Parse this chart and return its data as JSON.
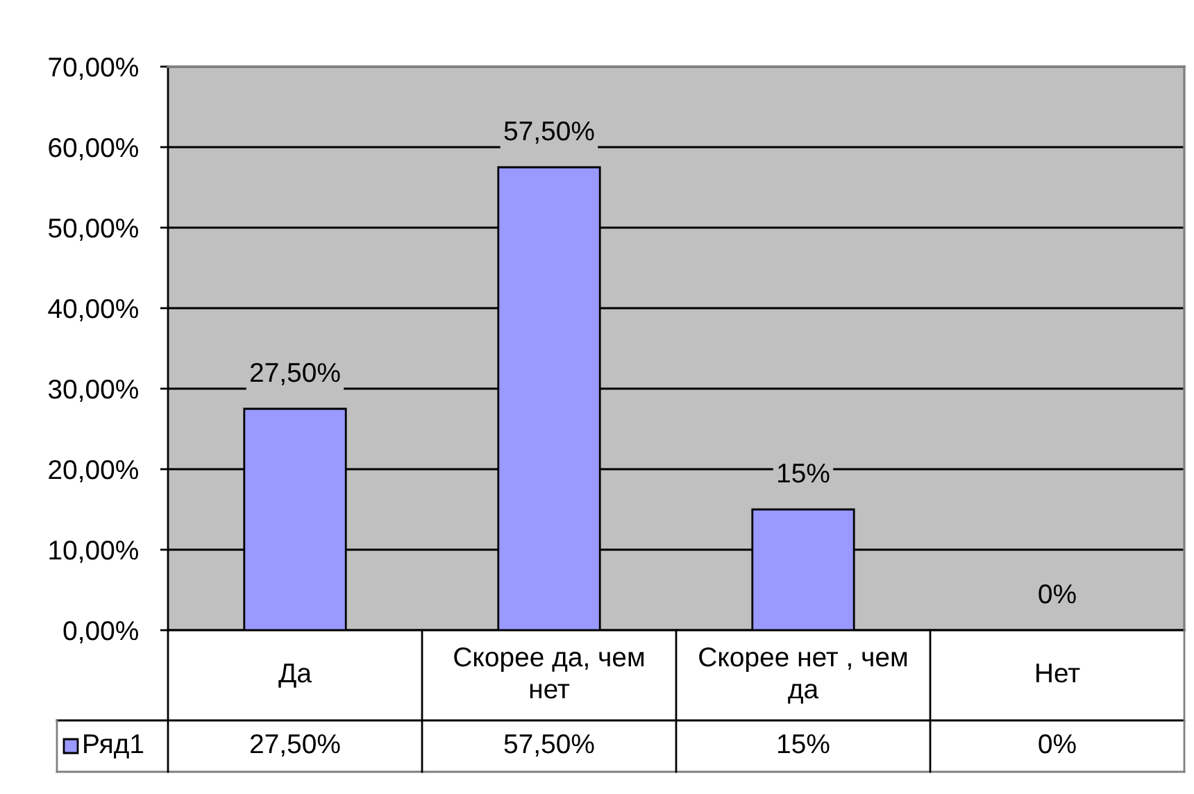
{
  "chart_data": {
    "type": "bar",
    "categories": [
      "Да",
      "Скорее да, чем нет",
      "Скорее нет , чем да",
      "Нет"
    ],
    "series": [
      {
        "name": "Ряд1",
        "color": "#9999ff",
        "values": [
          27.5,
          57.5,
          15,
          0
        ],
        "value_labels": [
          "27,50%",
          "57,50%",
          "15%",
          "0%"
        ]
      }
    ],
    "ylim": [
      0,
      70
    ],
    "yticks": [
      {
        "value": 0,
        "label": "0,00%"
      },
      {
        "value": 10,
        "label": "10,00%"
      },
      {
        "value": 20,
        "label": "20,00%"
      },
      {
        "value": 30,
        "label": "30,00%"
      },
      {
        "value": 40,
        "label": "40,00%"
      },
      {
        "value": 50,
        "label": "50,00%"
      },
      {
        "value": 60,
        "label": "60,00%"
      },
      {
        "value": 70,
        "label": "70,00%"
      }
    ],
    "grid": "y",
    "legend": "bottom left"
  }
}
